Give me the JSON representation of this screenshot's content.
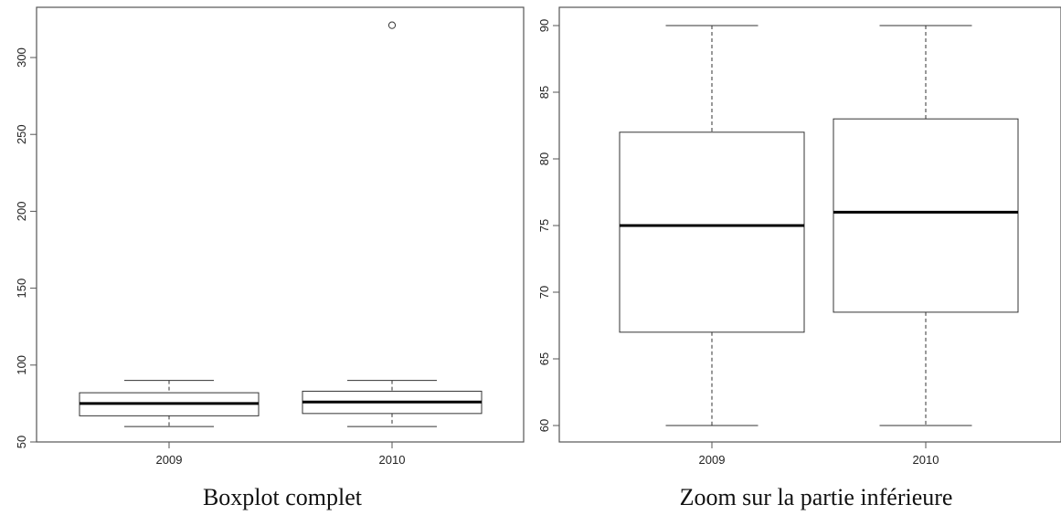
{
  "chart_data": [
    {
      "type": "boxplot",
      "caption": "Boxplot complet",
      "categories": [
        "2009",
        "2010"
      ],
      "boxes": [
        {
          "category": "2009",
          "whisker_low": 60,
          "q1": 67,
          "median": 75,
          "q3": 82,
          "whisker_high": 90,
          "outliers": []
        },
        {
          "category": "2010",
          "whisker_low": 60,
          "q1": 68.5,
          "median": 76,
          "q3": 83,
          "whisker_high": 90,
          "outliers": [
            321
          ]
        }
      ],
      "ylim": [
        50,
        330
      ],
      "yticks": [
        50,
        100,
        150,
        200,
        250,
        300
      ],
      "grid": false
    },
    {
      "type": "boxplot",
      "caption": "Zoom sur la partie inférieure",
      "categories": [
        "2009",
        "2010"
      ],
      "boxes": [
        {
          "category": "2009",
          "whisker_low": 60,
          "q1": 67,
          "median": 75,
          "q3": 82,
          "whisker_high": 90,
          "outliers": []
        },
        {
          "category": "2010",
          "whisker_low": 60,
          "q1": 68.5,
          "median": 76,
          "q3": 83,
          "whisker_high": 90,
          "outliers": []
        }
      ],
      "ylim": [
        59,
        91
      ],
      "yticks": [
        60,
        65,
        70,
        75,
        80,
        85,
        90
      ],
      "grid": false
    }
  ]
}
